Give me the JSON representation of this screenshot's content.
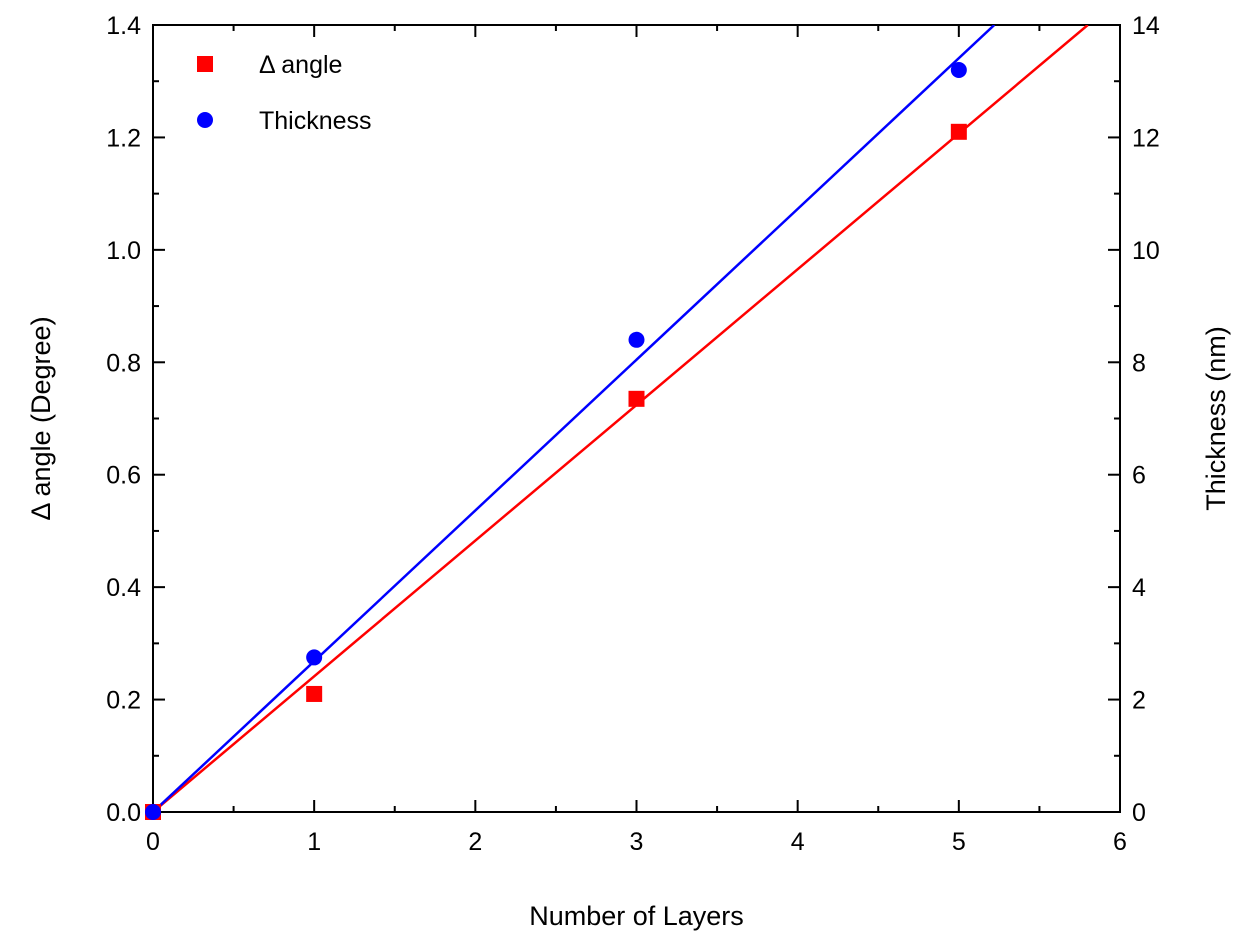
{
  "chart_data": {
    "type": "scatter",
    "xlabel": "Number of Layers",
    "ylabel_left": "Δ angle (Degree)",
    "ylabel_right": "Thickness (nm)",
    "xlim": [
      0,
      6
    ],
    "ylim_left": [
      0,
      1.4
    ],
    "ylim_right": [
      0,
      14
    ],
    "x_ticks": [
      "0",
      "1",
      "2",
      "3",
      "4",
      "5",
      "6"
    ],
    "y_left_ticks": [
      "0.0",
      "0.2",
      "0.4",
      "0.6",
      "0.8",
      "1.0",
      "1.2",
      "1.4"
    ],
    "y_right_ticks": [
      "0",
      "2",
      "4",
      "6",
      "8",
      "10",
      "12",
      "14"
    ],
    "grid": false,
    "legend_position": "top-left",
    "series": [
      {
        "name": "Δ angle",
        "axis": "left",
        "marker": "square",
        "color": "#ff0000",
        "x": [
          0,
          1,
          3,
          5
        ],
        "y": [
          0.0,
          0.21,
          0.735,
          1.21
        ],
        "fit_line": {
          "x": [
            0,
            5.8
          ],
          "y": [
            0.0,
            1.4
          ]
        }
      },
      {
        "name": "Thickness",
        "axis": "right",
        "marker": "circle",
        "color": "#0000ff",
        "x": [
          0,
          1,
          3,
          5
        ],
        "y": [
          0.0,
          2.75,
          8.4,
          13.2
        ],
        "fit_line": {
          "x": [
            0,
            5.22
          ],
          "y": [
            0.0,
            14.0
          ]
        }
      }
    ]
  }
}
